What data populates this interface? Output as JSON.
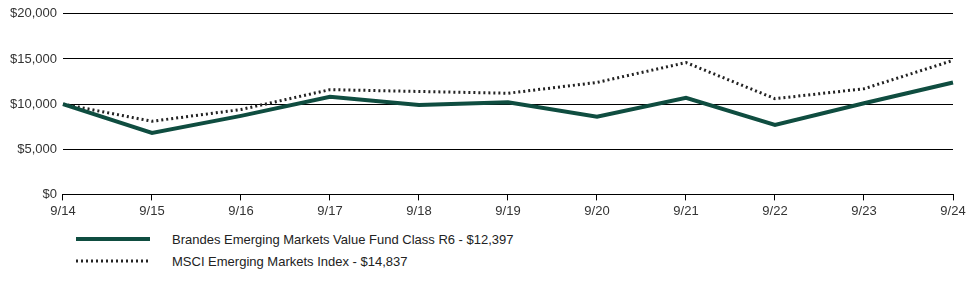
{
  "chart_data": {
    "type": "line",
    "categories": [
      "9/14",
      "9/15",
      "9/16",
      "9/17",
      "9/18",
      "9/19",
      "9/20",
      "9/21",
      "9/22",
      "9/23",
      "9/24"
    ],
    "series": [
      {
        "name": "Brandes Emerging Markets Value Fund Class R6 - $12,397",
        "color": "#0f4d40",
        "line_style": "solid",
        "values": [
          10000,
          6800,
          8700,
          10800,
          9900,
          10200,
          8600,
          10700,
          7700,
          10100,
          12397
        ]
      },
      {
        "name": "MSCI Emerging Markets Index - $14,837",
        "color": "#222222",
        "line_style": "dotted",
        "values": [
          10000,
          8100,
          9400,
          11600,
          11400,
          11200,
          12400,
          14600,
          10600,
          11700,
          14837
        ]
      }
    ],
    "ylim": [
      0,
      20000
    ],
    "yticks": [
      {
        "value": 0,
        "label": "$0"
      },
      {
        "value": 5000,
        "label": "$5,000"
      },
      {
        "value": 10000,
        "label": "$10,000"
      },
      {
        "value": 15000,
        "label": "$15,000"
      },
      {
        "value": 20000,
        "label": "$20,000"
      }
    ],
    "grid": true,
    "legend": "bottom-left"
  }
}
